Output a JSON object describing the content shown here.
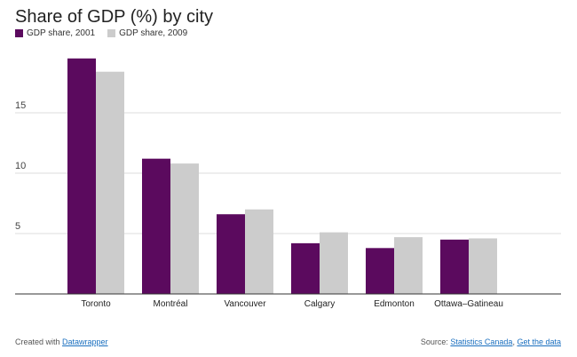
{
  "chart_data": {
    "type": "bar",
    "title": "Share of GDP (%) by city",
    "categories": [
      "Toronto",
      "Montréal",
      "Vancouver",
      "Calgary",
      "Edmonton",
      "Ottawa–Gatineau"
    ],
    "series": [
      {
        "name": "GDP share, 2001",
        "color": "#5b0a5e",
        "values": [
          19.5,
          11.2,
          6.6,
          4.2,
          3.8,
          4.5
        ]
      },
      {
        "name": "GDP share, 2009",
        "color": "#cccccc",
        "values": [
          18.4,
          10.8,
          7.0,
          5.1,
          4.7,
          4.6
        ]
      }
    ],
    "y_ticks": [
      "5",
      "10",
      "15"
    ],
    "ylim": [
      0,
      20
    ],
    "grid": true,
    "legend_position": "top-left"
  },
  "footer": {
    "created_prefix": "Created with ",
    "created_link": "Datawrapper",
    "source_prefix": "Source: ",
    "source_link": "Statistics Canada",
    "separator": ", ",
    "data_link": "Get the data"
  }
}
